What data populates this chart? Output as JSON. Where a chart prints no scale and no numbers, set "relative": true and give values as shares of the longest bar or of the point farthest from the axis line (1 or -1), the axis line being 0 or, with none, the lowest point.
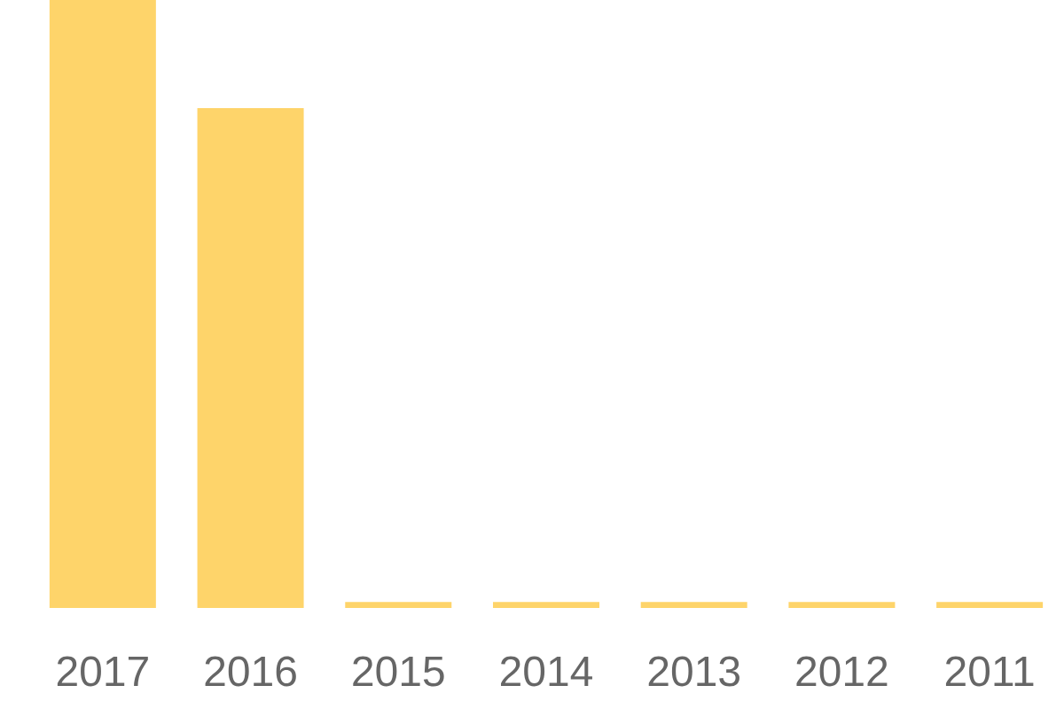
{
  "chart_data": {
    "type": "bar",
    "relative": true,
    "categories": [
      "2017",
      "2016",
      "2015",
      "2014",
      "2013",
      "2012",
      "2011"
    ],
    "values": [
      1,
      0.822,
      0.01,
      0.01,
      0.01,
      0.01,
      0.01
    ],
    "color": "#fed46a"
  }
}
